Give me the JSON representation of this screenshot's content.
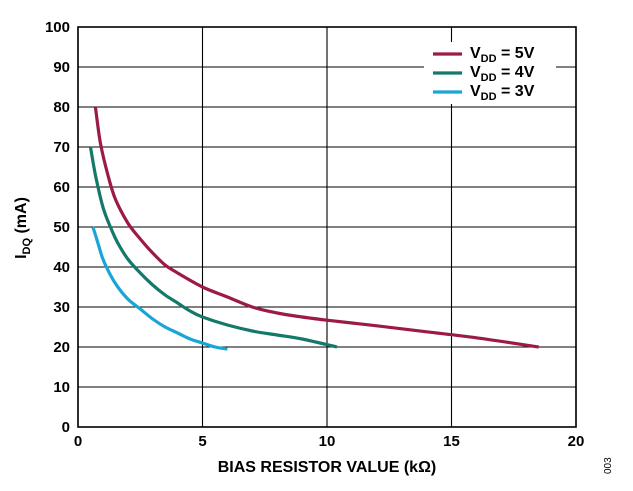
{
  "chart_data": {
    "type": "line",
    "xlabel": "BIAS RESISTOR VALUE (kΩ)",
    "ylabel": {
      "main": "I",
      "sub": "DQ",
      "unit": " (mA)"
    },
    "xlim": [
      0,
      20
    ],
    "ylim": [
      0,
      100
    ],
    "x_ticks": [
      "0",
      "5",
      "10",
      "15",
      "20"
    ],
    "y_ticks": [
      "0",
      "10",
      "20",
      "30",
      "40",
      "50",
      "60",
      "70",
      "80",
      "90",
      "100"
    ],
    "grid": true,
    "legend_position": "top-right",
    "series": [
      {
        "name": "VDD = 5V",
        "label_main": "V",
        "label_sub": "DD",
        "label_rest": " = 5V",
        "color": "#9b1b45",
        "x": [
          0.7,
          0.9,
          1.2,
          1.5,
          2.0,
          2.5,
          3.0,
          3.5,
          4.0,
          5.0,
          6.0,
          7.0,
          8.0,
          9.0,
          10.0,
          11.0,
          12.0,
          14.0,
          16.0,
          18.5
        ],
        "y": [
          80,
          71,
          63,
          57,
          51,
          47,
          43.5,
          40.5,
          38.5,
          35,
          32.5,
          30,
          28.5,
          27.5,
          26.7,
          26,
          25.3,
          23.8,
          22.3,
          20
        ]
      },
      {
        "name": "VDD = 4V",
        "label_main": "V",
        "label_sub": "DD",
        "label_rest": " = 4V",
        "color": "#14796a",
        "x": [
          0.5,
          0.7,
          1.0,
          1.3,
          1.6,
          2.0,
          2.5,
          3.0,
          3.5,
          4.0,
          4.5,
          5.0,
          6.0,
          7.0,
          8.0,
          9.0,
          10.4
        ],
        "y": [
          70,
          63,
          55,
          50,
          46,
          42,
          38.5,
          35.5,
          33,
          31,
          29,
          27.5,
          25.5,
          24,
          23,
          22,
          20
        ]
      },
      {
        "name": "VDD = 3V",
        "label_main": "V",
        "label_sub": "DD",
        "label_rest": " = 3V",
        "color": "#1aa5d8",
        "x": [
          0.6,
          0.8,
          1.0,
          1.3,
          1.6,
          2.0,
          2.5,
          3.0,
          3.5,
          4.0,
          4.5,
          5.0,
          5.5,
          6.0
        ],
        "y": [
          50,
          46,
          42,
          38,
          35,
          32,
          29.5,
          27,
          25,
          23.5,
          22,
          21,
          20,
          19.5
        ]
      }
    ]
  },
  "figure_id": "003"
}
